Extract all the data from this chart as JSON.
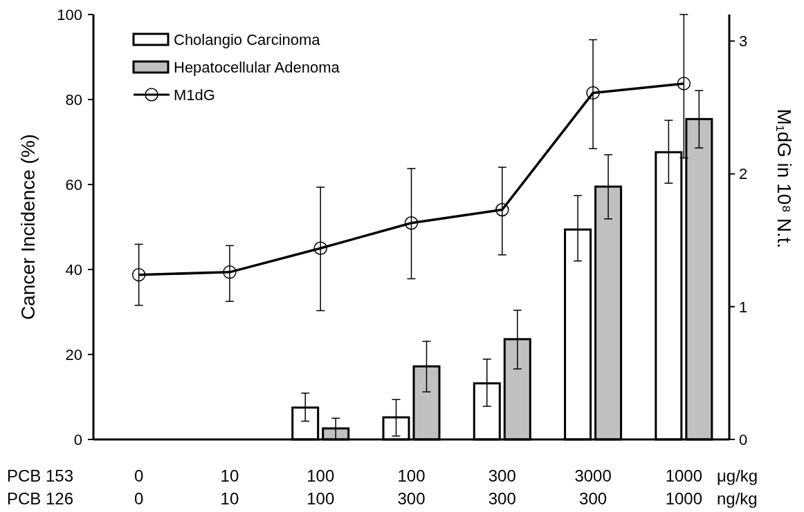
{
  "chart_data": {
    "type": "bar",
    "ylabel": "Cancer Incidence (%)",
    "y2label": "M₁dG in 10⁸ N.t.",
    "categories": [
      "0\n0",
      "10\n10",
      "100\n100",
      "100\n300",
      "300\n300",
      "3000\n300",
      "1000\n1000"
    ],
    "series": [
      {
        "name": "Cholangio Carcinoma",
        "color": "#ffffff",
        "values": [
          0,
          0,
          7.5,
          5.2,
          13.2,
          49.4,
          67.6
        ],
        "errors": [
          null,
          null,
          [
            4.3,
            10.9
          ],
          [
            0.8,
            9.4
          ],
          [
            7.8,
            18.9
          ],
          [
            42.0,
            57.4
          ],
          [
            60.3,
            75.1
          ]
        ]
      },
      {
        "name": "Hepatocellular Adenoma",
        "color": "#c0c0c0",
        "values": [
          0,
          0,
          2.6,
          17.2,
          23.6,
          59.5,
          75.4
        ],
        "errors": [
          null,
          null,
          [
            0,
            5.0
          ],
          [
            11.2,
            23.1
          ],
          [
            16.6,
            30.4
          ],
          [
            51.9,
            67.0
          ],
          [
            68.6,
            82.1
          ]
        ]
      },
      {
        "name": "M1dG",
        "type": "line",
        "axis": "y2",
        "color": "#000000",
        "values": [
          1.24,
          1.26,
          1.44,
          1.63,
          1.73,
          2.61,
          2.68
        ],
        "errors": [
          [
            1.01,
            1.47
          ],
          [
            1.04,
            1.46
          ],
          [
            0.97,
            1.9
          ],
          [
            1.21,
            2.04
          ],
          [
            1.39,
            2.05
          ],
          [
            2.19,
            3.01
          ],
          [
            2.12,
            3.2
          ]
        ]
      }
    ],
    "ylim": [
      0,
      100
    ],
    "yticks": [
      0,
      20,
      40,
      60,
      80,
      100
    ],
    "y2lim": [
      0,
      3.2
    ],
    "y2ticks": [
      0,
      1,
      2,
      3
    ],
    "marker": "circle",
    "line_style": "solid",
    "legend": "top left",
    "annotations": [
      "PCB 153",
      "PCB 126",
      "μg/kg",
      "ng/kg"
    ]
  }
}
